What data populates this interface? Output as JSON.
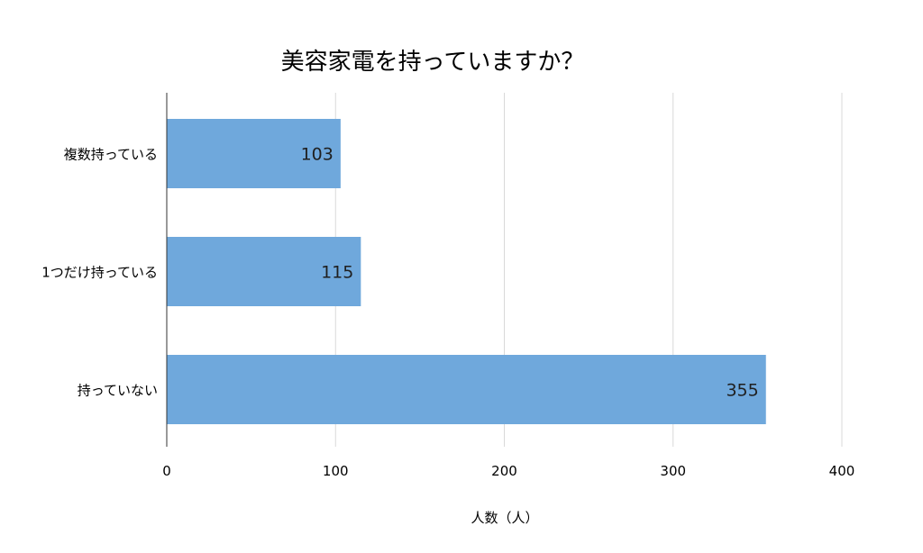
{
  "chart_data": {
    "type": "bar",
    "orientation": "horizontal",
    "title": "美容家電を持っていますか？",
    "xlabel": "人数（人）",
    "ylabel": "",
    "categories": [
      "複数持っている",
      "1つだけ持っている",
      "持っていない"
    ],
    "values": [
      103,
      115,
      355
    ],
    "xlim": [
      0,
      400
    ],
    "ticks": [
      "0",
      "100",
      "200",
      "300",
      "400"
    ],
    "grid": true,
    "legend": "none",
    "bar_color": "#6fa8dc",
    "data_labels": true
  }
}
